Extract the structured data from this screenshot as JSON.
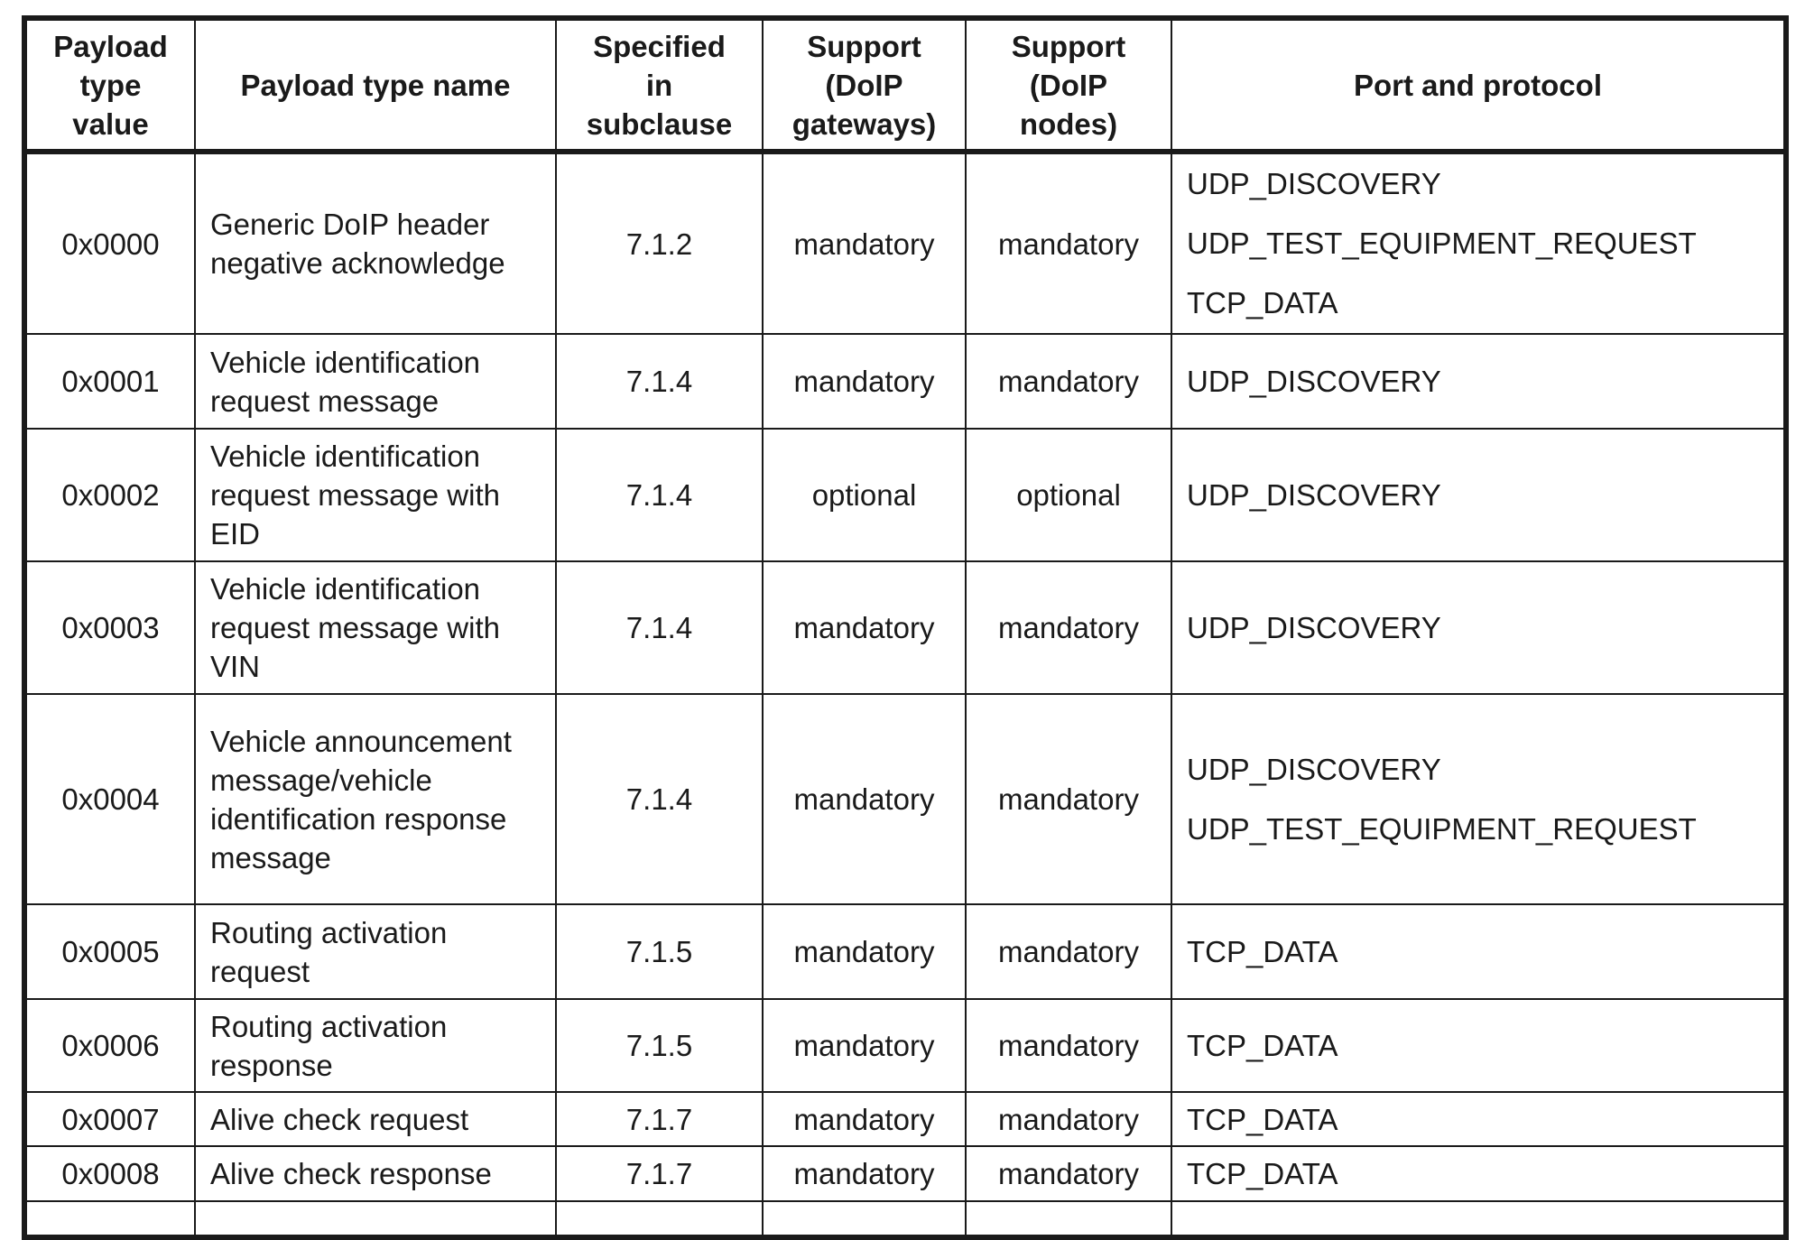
{
  "headers": [
    "Payload type value",
    "Payload type name",
    "Specified in subclause",
    "Support (DoIP gateways)",
    "Support (DoIP nodes)",
    "Port and protocol"
  ],
  "header_lines": [
    [
      "Payload",
      "type",
      "value"
    ],
    [
      "Payload type name"
    ],
    [
      "Specified",
      "in",
      "subclause"
    ],
    [
      "Support",
      "(DoIP",
      "gateways)"
    ],
    [
      "Support",
      "(DoIP",
      "nodes)"
    ],
    [
      "Port and protocol"
    ]
  ],
  "rows": [
    {
      "value": "0x0000",
      "name": "Generic DoIP header negative acknowledge",
      "subclause": "7.1.2",
      "gateways": "mandatory",
      "nodes": "mandatory",
      "protocols": [
        "UDP_DISCOVERY",
        "UDP_TEST_EQUIPMENT_REQUEST",
        "TCP_DATA"
      ]
    },
    {
      "value": "0x0001",
      "name": "Vehicle identification request message",
      "subclause": "7.1.4",
      "gateways": "mandatory",
      "nodes": "mandatory",
      "protocols": [
        "UDP_DISCOVERY"
      ]
    },
    {
      "value": "0x0002",
      "name": "Vehicle identification request message with EID",
      "subclause": "7.1.4",
      "gateways": "optional",
      "nodes": "optional",
      "protocols": [
        "UDP_DISCOVERY"
      ]
    },
    {
      "value": "0x0003",
      "name": "Vehicle identification request message with VIN",
      "subclause": "7.1.4",
      "gateways": "mandatory",
      "nodes": "mandatory",
      "protocols": [
        "UDP_DISCOVERY"
      ]
    },
    {
      "value": "0x0004",
      "name": "Vehicle announcement message/vehicle identification response message",
      "subclause": "7.1.4",
      "gateways": "mandatory",
      "nodes": "mandatory",
      "protocols": [
        "UDP_DISCOVERY",
        "UDP_TEST_EQUIPMENT_REQUEST"
      ]
    },
    {
      "value": "0x0005",
      "name": "Routing activation request",
      "subclause": "7.1.5",
      "gateways": "mandatory",
      "nodes": "mandatory",
      "protocols": [
        "TCP_DATA"
      ]
    },
    {
      "value": "0x0006",
      "name": "Routing activation response",
      "subclause": "7.1.5",
      "gateways": "mandatory",
      "nodes": "mandatory",
      "protocols": [
        "TCP_DATA"
      ]
    },
    {
      "value": "0x0007",
      "name": "Alive check request",
      "subclause": "7.1.7",
      "gateways": "mandatory",
      "nodes": "mandatory",
      "protocols": [
        "TCP_DATA"
      ]
    },
    {
      "value": "0x0008",
      "name": "Alive check response",
      "subclause": "7.1.7",
      "gateways": "mandatory",
      "nodes": "mandatory",
      "protocols": [
        "TCP_DATA"
      ]
    }
  ]
}
